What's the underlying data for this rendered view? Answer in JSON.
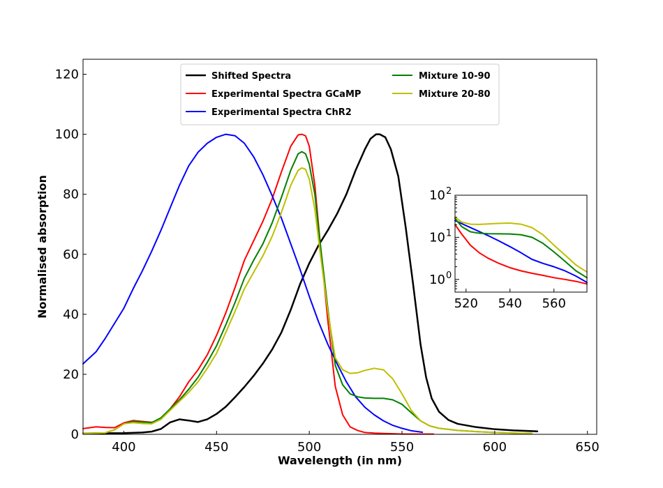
{
  "chart_data": [
    {
      "type": "line",
      "title": "",
      "xlabel": "Wavelength (in nm)",
      "ylabel": "Normalised absorption",
      "xlim": [
        378,
        655
      ],
      "ylim": [
        0,
        125
      ],
      "xticks": [
        400,
        450,
        500,
        550,
        600,
        650
      ],
      "yticks": [
        0,
        20,
        40,
        60,
        80,
        100,
        120
      ],
      "grid": false,
      "legend_position": "top-center",
      "series": [
        {
          "name": "Shifted Spectra",
          "color": "#000000",
          "x": [
            378,
            400,
            410,
            415,
            420,
            425,
            430,
            435,
            440,
            445,
            450,
            455,
            460,
            465,
            470,
            475,
            480,
            485,
            490,
            495,
            500,
            505,
            510,
            515,
            520,
            525,
            530,
            533,
            536,
            538,
            541,
            544,
            548,
            552,
            556,
            560,
            563,
            566,
            570,
            575,
            580,
            590,
            600,
            610,
            623
          ],
          "y": [
            0.3,
            0.4,
            0.6,
            0.9,
            1.8,
            4,
            5,
            4.6,
            4.1,
            5,
            6.8,
            9.2,
            12.4,
            15.8,
            19.5,
            23.6,
            28.3,
            34,
            41.5,
            50,
            57,
            63,
            68,
            73.5,
            80,
            88,
            95,
            98.5,
            100,
            100,
            99,
            95,
            86,
            69,
            50,
            30,
            19,
            12,
            7.5,
            4.8,
            3.5,
            2.4,
            1.7,
            1.3,
            1.0
          ]
        },
        {
          "name": "Experimental Spectra GCaMP",
          "color": "#ff0000",
          "x": [
            378,
            385,
            390,
            395,
            400,
            405,
            410,
            415,
            420,
            425,
            430,
            435,
            440,
            445,
            450,
            455,
            460,
            465,
            470,
            475,
            480,
            485,
            490,
            494,
            496,
            498,
            500,
            503,
            506,
            510,
            514,
            518,
            522,
            526,
            530,
            535,
            540,
            545,
            550,
            555,
            560,
            567
          ],
          "y": [
            1.9,
            2.5,
            2.3,
            2.2,
            3.8,
            4.6,
            4.3,
            4.0,
            5.0,
            8.5,
            12.5,
            17.5,
            21.5,
            26.5,
            33,
            40.5,
            49,
            58,
            64.5,
            71,
            78.5,
            87.5,
            96,
            99.8,
            100,
            99.5,
            96,
            83,
            63,
            38,
            16,
            6.5,
            2.5,
            1.3,
            0.6,
            0.4,
            0.3,
            0.2,
            0.1,
            0.1,
            0.1,
            0.1
          ]
        },
        {
          "name": "Experimental Spectra ChR2",
          "color": "#0000ff",
          "x": [
            378,
            385,
            390,
            395,
            400,
            405,
            410,
            415,
            420,
            425,
            430,
            435,
            440,
            445,
            450,
            455,
            460,
            465,
            470,
            475,
            480,
            485,
            490,
            495,
            500,
            505,
            510,
            515,
            520,
            525,
            530,
            535,
            540,
            545,
            550,
            555,
            561
          ],
          "y": [
            23.5,
            27.5,
            32,
            37,
            42,
            48.5,
            54.5,
            61,
            68,
            75.5,
            83,
            89.5,
            94,
            97,
            99,
            100,
            99.5,
            97,
            92.5,
            86.5,
            79.5,
            72,
            63.5,
            55,
            46,
            37.5,
            30,
            23.5,
            17.5,
            12.5,
            9,
            6.5,
            4.5,
            3,
            2,
            1.2,
            0.7
          ]
        },
        {
          "name": "Mixture 10-90",
          "color": "#008000",
          "x": [
            378,
            390,
            395,
            400,
            405,
            410,
            415,
            420,
            425,
            430,
            435,
            440,
            445,
            450,
            455,
            460,
            465,
            470,
            475,
            480,
            485,
            490,
            494,
            496,
            498,
            500,
            503,
            506,
            510,
            514,
            518,
            522,
            526,
            530,
            535,
            540,
            545,
            550,
            555,
            560,
            565,
            570,
            580,
            590,
            600,
            610,
            620
          ],
          "y": [
            0.3,
            0.5,
            1.5,
            3.5,
            4.3,
            4.1,
            3.9,
            5.5,
            8.5,
            11.5,
            15,
            19,
            24,
            29.5,
            36.5,
            44,
            52,
            58,
            63.5,
            70.5,
            79,
            88,
            93.5,
            94.2,
            93.5,
            90,
            80,
            63,
            42,
            23,
            16.5,
            13.5,
            12.5,
            12.1,
            12.0,
            12.0,
            11.5,
            10,
            7.2,
            4.5,
            2.8,
            2.0,
            1.3,
            0.9,
            0.6,
            0.4,
            0.3
          ]
        },
        {
          "name": "Mixture 20-80",
          "color": "#bfbf00",
          "x": [
            378,
            390,
            395,
            400,
            405,
            410,
            415,
            420,
            425,
            430,
            435,
            440,
            445,
            450,
            455,
            460,
            465,
            470,
            475,
            480,
            485,
            490,
            494,
            496,
            498,
            500,
            503,
            506,
            510,
            514,
            518,
            522,
            526,
            530,
            535,
            540,
            545,
            550,
            555,
            560,
            565,
            570,
            580,
            590,
            600,
            610,
            620
          ],
          "y": [
            0.3,
            0.5,
            1.5,
            3.5,
            3.9,
            3.6,
            3.5,
            5.0,
            8.0,
            11,
            14,
            17.5,
            22,
            27,
            34,
            41,
            48.5,
            54,
            59.5,
            66,
            74,
            83,
            88,
            88.8,
            88.3,
            85,
            75,
            60,
            41,
            25.5,
            21.5,
            20.3,
            20.5,
            21.3,
            22,
            21.5,
            18.5,
            13.5,
            8,
            4.5,
            2.8,
            2.0,
            1.3,
            0.9,
            0.6,
            0.4,
            0.3
          ]
        }
      ]
    },
    {
      "type": "line",
      "title": "",
      "xlabel": "",
      "ylabel": "",
      "xlim": [
        515,
        575
      ],
      "ylim": [
        0.5,
        100
      ],
      "yscale": "log",
      "xticks": [
        520,
        540,
        560
      ],
      "ytick_labels": [
        {
          "value": 1,
          "mant": "10",
          "exp": "0"
        },
        {
          "value": 10,
          "mant": "10",
          "exp": "1"
        },
        {
          "value": 100,
          "mant": "10",
          "exp": "2"
        }
      ],
      "grid": false,
      "position": "right-middle inset",
      "series": [
        {
          "color": "#ff0000",
          "x": [
            515,
            518,
            522,
            526,
            530,
            535,
            540,
            545,
            550,
            555,
            560,
            565,
            570,
            575
          ],
          "y": [
            20,
            12,
            6.5,
            4.3,
            3.2,
            2.4,
            1.9,
            1.6,
            1.4,
            1.25,
            1.1,
            1.0,
            0.9,
            0.78
          ]
        },
        {
          "color": "#0000ff",
          "x": [
            515,
            520,
            525,
            530,
            535,
            540,
            545,
            550,
            555,
            560,
            565,
            570,
            575
          ],
          "y": [
            25,
            19,
            14.5,
            11,
            8.2,
            6.0,
            4.3,
            3.0,
            2.4,
            2.0,
            1.6,
            1.2,
            0.85
          ]
        },
        {
          "color": "#008000",
          "x": [
            515,
            518,
            522,
            526,
            530,
            535,
            540,
            545,
            550,
            555,
            560,
            565,
            570,
            575
          ],
          "y": [
            28,
            18,
            13.5,
            12.5,
            12.2,
            12.1,
            12.0,
            11.5,
            10,
            7.2,
            4.5,
            2.7,
            1.6,
            1.1
          ]
        },
        {
          "color": "#bfbf00",
          "x": [
            515,
            518,
            522,
            526,
            530,
            535,
            540,
            545,
            550,
            555,
            560,
            565,
            570,
            575
          ],
          "y": [
            30,
            23,
            20.5,
            20.3,
            20.8,
            21.5,
            21.8,
            20.5,
            17,
            11.5,
            6.5,
            3.8,
            2.2,
            1.5
          ]
        }
      ]
    }
  ]
}
